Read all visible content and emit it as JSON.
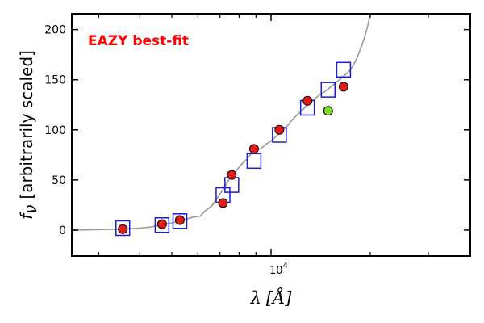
{
  "chart_data": {
    "type": "scatter",
    "annotation": "EAZY best-fit",
    "annotation_color": "#ff0000",
    "xlabel_symbol": "λ",
    "xlabel_unit": "[Å]",
    "ylabel_symbol": "f",
    "ylabel_sub": "ν",
    "ylabel_text": "[arbitrarily scaled]",
    "x_scale": "log",
    "xlim": [
      2500,
      40000
    ],
    "ylim": [
      -25,
      215
    ],
    "yticks": [
      "0",
      "50",
      "100",
      "150",
      "200"
    ],
    "xtick_major": {
      "base": "10",
      "exp": "4"
    },
    "grid": false,
    "series": [
      {
        "kind": "model",
        "color": "#999999",
        "x": [
          2500,
          3000,
          3500,
          4000,
          4300,
          4600,
          5000,
          5400,
          5800,
          6100,
          6300,
          6600,
          6900,
          7200,
          7500,
          7800,
          8100,
          8400,
          8700,
          9000,
          9300,
          9600,
          10000,
          10400,
          10800,
          11200,
          11600,
          12000,
          12400,
          12800,
          13200,
          13600,
          14000,
          14400,
          14800,
          15200,
          15600,
          16000,
          16400,
          16800,
          17200,
          17600,
          18000,
          18400,
          18800,
          19200,
          19600,
          20000
        ],
        "y": [
          0,
          0.5,
          1,
          2,
          3,
          5,
          7,
          10,
          13,
          14,
          19,
          24,
          33,
          42,
          52,
          58,
          65,
          70,
          76,
          80,
          81,
          85,
          89,
          94,
          99,
          104,
          110,
          115,
          119,
          124,
          128,
          131,
          135,
          137,
          140,
          143,
          146,
          149,
          152,
          155,
          158,
          162,
          168,
          175,
          183,
          192,
          202,
          215
        ]
      },
      {
        "kind": "template-photometry",
        "marker": "square",
        "color": "#1a1adb",
        "x": [
          3550,
          4670,
          5290,
          7150,
          7600,
          8880,
          10600,
          12900,
          14900,
          16600
        ],
        "y": [
          2,
          5,
          9,
          35,
          45,
          69,
          95,
          122,
          140,
          160
        ]
      },
      {
        "kind": "observed",
        "marker": "circle",
        "color": "#e41a1a",
        "x": [
          3550,
          4670,
          5290,
          7150,
          7600,
          8880,
          10600,
          12900,
          16600
        ],
        "y": [
          1,
          6,
          10,
          27,
          55,
          81,
          100,
          129,
          143
        ]
      },
      {
        "kind": "observed-highlight",
        "marker": "circle",
        "color": "#7fdc1e",
        "x": [
          14900
        ],
        "y": [
          119
        ]
      }
    ]
  }
}
